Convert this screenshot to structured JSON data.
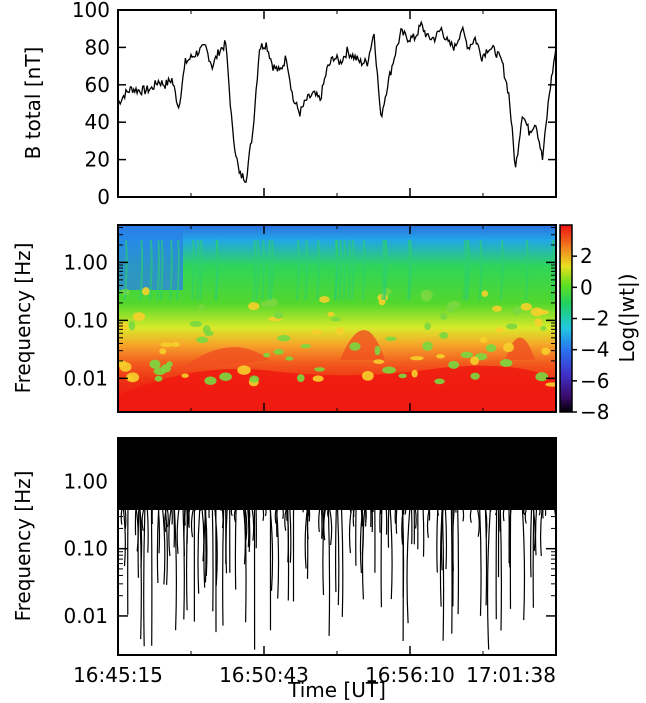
{
  "figure": {
    "x_ticks": [
      "16:45:15",
      "16:50:43",
      "16:56:10",
      "17:01:38"
    ],
    "x_label": "Time [UT]"
  },
  "chart_data": [
    {
      "type": "line",
      "panel": "b-total",
      "ylabel": "B total [nT]",
      "ylim": [
        0,
        100
      ],
      "yticks": [
        0,
        20,
        40,
        60,
        80,
        100
      ],
      "x_range": [
        "16:45:15",
        "17:01:38"
      ],
      "series": [
        {
          "values": [
            50,
            55,
            58,
            57,
            57,
            58,
            62,
            60,
            63,
            48,
            72,
            75,
            78,
            80,
            70,
            78,
            82,
            35,
            12,
            10,
            35,
            80,
            82,
            70,
            67,
            75,
            52,
            45,
            52,
            55,
            52,
            68,
            75,
            72,
            78,
            75,
            72,
            72,
            88,
            42,
            60,
            75,
            88,
            85,
            85,
            92,
            85,
            85,
            90,
            82,
            80,
            90,
            80,
            85,
            75,
            80,
            78,
            72,
            55,
            15,
            45,
            35,
            40,
            20,
            55,
            80
          ]
        }
      ]
    },
    {
      "type": "heatmap",
      "panel": "wavelet-spectrum",
      "ylabel": "Frequency [Hz]",
      "yticks": [
        "1.00",
        "0.10",
        "0.01"
      ],
      "y_scale": "log",
      "colorbar_label": "Log(|wt|)",
      "colorbar_ticks": [
        2,
        0,
        -2,
        -4,
        -6,
        -8
      ],
      "colorbar_range": [
        -8,
        4
      ]
    },
    {
      "type": "line",
      "panel": "ridge-lines",
      "ylabel": "Frequency [Hz]",
      "yticks": [
        "1.00",
        "0.10",
        "0.01"
      ],
      "y_scale": "log"
    }
  ]
}
